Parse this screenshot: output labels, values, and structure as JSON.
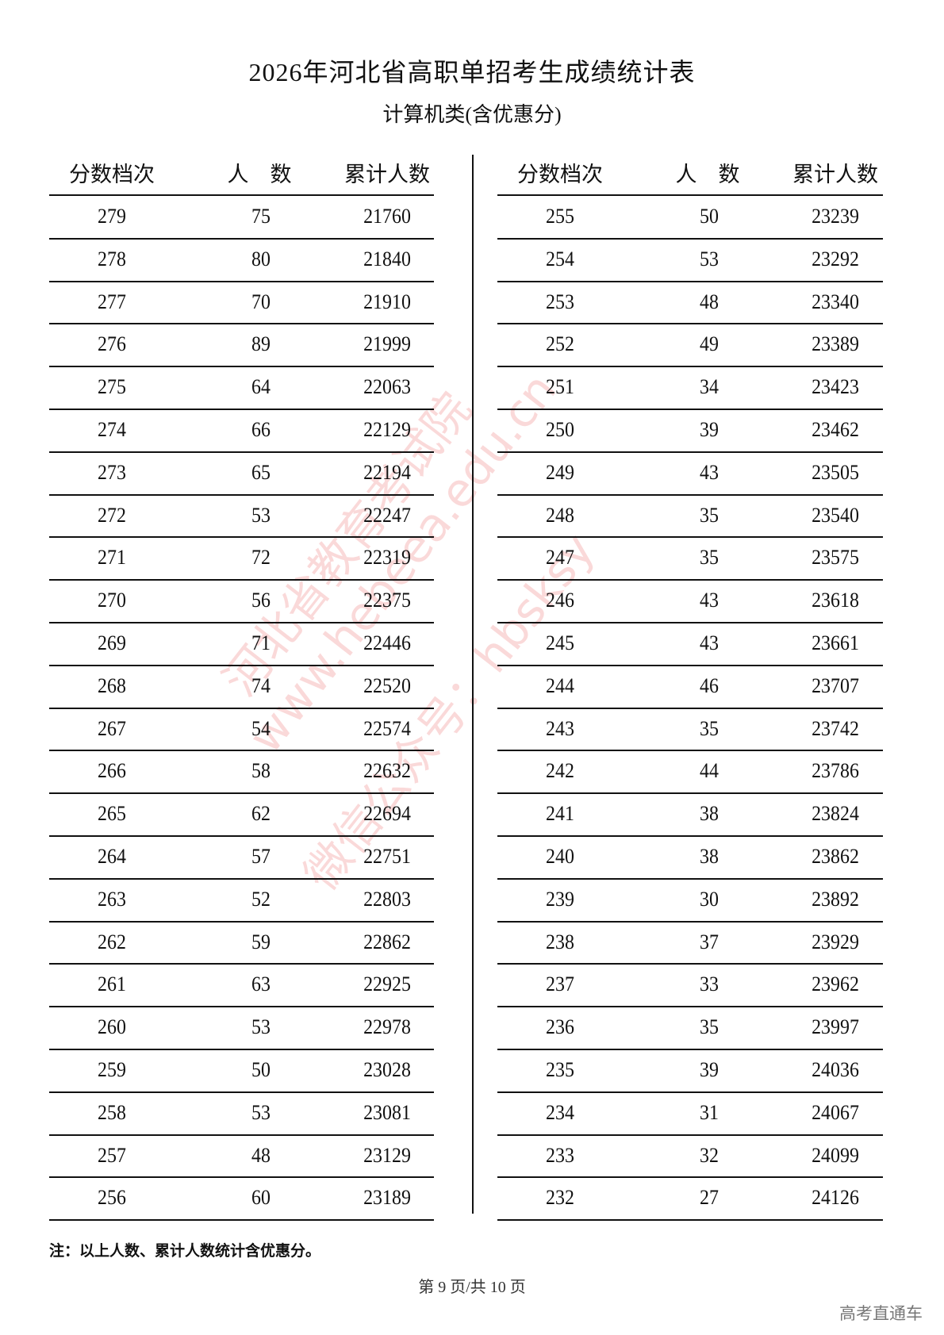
{
  "title": "2026年河北省高职单招考生成绩统计表",
  "subtitle": "计算机类(含优惠分)",
  "headers": [
    "分数档次",
    "人　数",
    "累计人数"
  ],
  "left_rows": [
    [
      "279",
      "75",
      "21760"
    ],
    [
      "278",
      "80",
      "21840"
    ],
    [
      "277",
      "70",
      "21910"
    ],
    [
      "276",
      "89",
      "21999"
    ],
    [
      "275",
      "64",
      "22063"
    ],
    [
      "274",
      "66",
      "22129"
    ],
    [
      "273",
      "65",
      "22194"
    ],
    [
      "272",
      "53",
      "22247"
    ],
    [
      "271",
      "72",
      "22319"
    ],
    [
      "270",
      "56",
      "22375"
    ],
    [
      "269",
      "71",
      "22446"
    ],
    [
      "268",
      "74",
      "22520"
    ],
    [
      "267",
      "54",
      "22574"
    ],
    [
      "266",
      "58",
      "22632"
    ],
    [
      "265",
      "62",
      "22694"
    ],
    [
      "264",
      "57",
      "22751"
    ],
    [
      "263",
      "52",
      "22803"
    ],
    [
      "262",
      "59",
      "22862"
    ],
    [
      "261",
      "63",
      "22925"
    ],
    [
      "260",
      "53",
      "22978"
    ],
    [
      "259",
      "50",
      "23028"
    ],
    [
      "258",
      "53",
      "23081"
    ],
    [
      "257",
      "48",
      "23129"
    ],
    [
      "256",
      "60",
      "23189"
    ]
  ],
  "right_rows": [
    [
      "255",
      "50",
      "23239"
    ],
    [
      "254",
      "53",
      "23292"
    ],
    [
      "253",
      "48",
      "23340"
    ],
    [
      "252",
      "49",
      "23389"
    ],
    [
      "251",
      "34",
      "23423"
    ],
    [
      "250",
      "39",
      "23462"
    ],
    [
      "249",
      "43",
      "23505"
    ],
    [
      "248",
      "35",
      "23540"
    ],
    [
      "247",
      "35",
      "23575"
    ],
    [
      "246",
      "43",
      "23618"
    ],
    [
      "245",
      "43",
      "23661"
    ],
    [
      "244",
      "46",
      "23707"
    ],
    [
      "243",
      "35",
      "23742"
    ],
    [
      "242",
      "44",
      "23786"
    ],
    [
      "241",
      "38",
      "23824"
    ],
    [
      "240",
      "38",
      "23862"
    ],
    [
      "239",
      "30",
      "23892"
    ],
    [
      "238",
      "37",
      "23929"
    ],
    [
      "237",
      "33",
      "23962"
    ],
    [
      "236",
      "35",
      "23997"
    ],
    [
      "235",
      "39",
      "24036"
    ],
    [
      "234",
      "31",
      "24067"
    ],
    [
      "233",
      "32",
      "24099"
    ],
    [
      "232",
      "27",
      "24126"
    ]
  ],
  "note": "注：以上人数、累计人数统计含优惠分。",
  "pager": "第 9 页/共 10 页",
  "watermark": {
    "lines": [
      "河北省教育考试院",
      "www.hebeea.edu.cn",
      "微信公众号：hbsksy"
    ],
    "color": "#e65050"
  },
  "brand": "高考直通车"
}
